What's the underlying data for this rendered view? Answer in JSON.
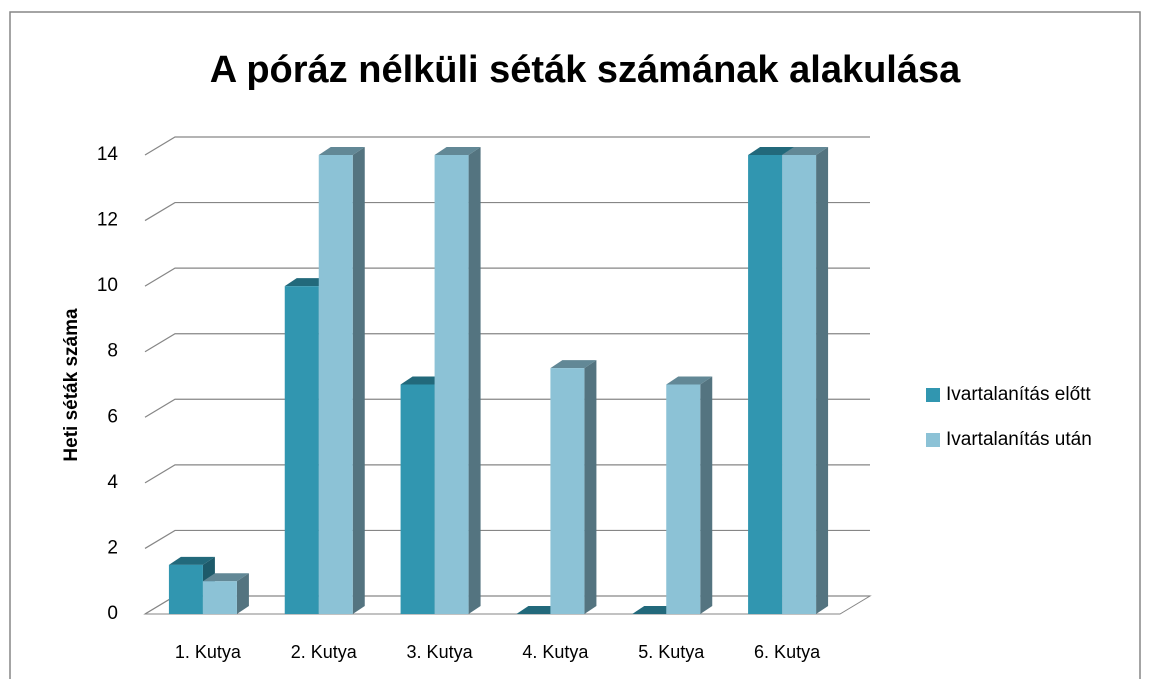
{
  "chart_data": {
    "type": "bar3d",
    "title": "A póráz nélküli séták számának alakulása",
    "y_label": "Heti séták száma",
    "categories": [
      "1. Kutya",
      "2. Kutya",
      "3. Kutya",
      "4. Kutya",
      "5. Kutya",
      "6. Kutya"
    ],
    "series": [
      {
        "name": "Ivartalanítás előtt",
        "color": "#3196b0",
        "values": [
          1.5,
          10,
          7,
          0,
          0,
          14
        ]
      },
      {
        "name": "Ivartalanítás után",
        "color": "#8cc2d6",
        "values": [
          1,
          14,
          14,
          7.5,
          7,
          14
        ]
      }
    ],
    "ylim": [
      0,
      14
    ],
    "yticks": [
      0,
      2,
      4,
      6,
      8,
      10,
      12,
      14
    ],
    "grid": true,
    "legend": "right"
  }
}
